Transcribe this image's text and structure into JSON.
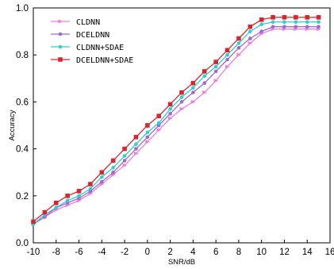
{
  "chart_data": {
    "type": "line",
    "title": "",
    "xlabel": "SNR/dB",
    "ylabel": "Accuracy",
    "xlim": [
      -10,
      16
    ],
    "ylim": [
      0,
      1
    ],
    "x_ticks": [
      -10,
      -8,
      -6,
      -4,
      -2,
      0,
      2,
      4,
      6,
      8,
      10,
      12,
      14,
      16
    ],
    "y_ticks": [
      0.0,
      0.2,
      0.4,
      0.6,
      0.8,
      1.0
    ],
    "x_tick_labels": [
      "-10",
      "-8",
      "-6",
      "-4",
      "-2",
      "0",
      "2",
      "4",
      "6",
      "8",
      "10",
      "12",
      "14",
      "16"
    ],
    "y_tick_labels": [
      "0.0",
      "0.2",
      "0.4",
      "0.6",
      "0.8",
      "1.0"
    ],
    "grid": false,
    "legend_position": "top-left",
    "x": [
      -10,
      -9,
      -8,
      -7,
      -6,
      -5,
      -4,
      -3,
      -2,
      -1,
      0,
      1,
      2,
      3,
      4,
      5,
      6,
      7,
      8,
      9,
      10,
      11,
      12,
      13,
      14,
      15
    ],
    "series": [
      {
        "name": "CLDNN",
        "color": "#f07ce0",
        "marker": "triangle-right",
        "values": [
          0.08,
          0.11,
          0.14,
          0.16,
          0.18,
          0.21,
          0.25,
          0.29,
          0.33,
          0.38,
          0.43,
          0.48,
          0.53,
          0.57,
          0.6,
          0.64,
          0.69,
          0.75,
          0.8,
          0.85,
          0.89,
          0.91,
          0.91,
          0.91,
          0.91,
          0.91
        ]
      },
      {
        "name": "DCELDNN",
        "color": "#9d6bd0",
        "marker": "circle",
        "values": [
          0.08,
          0.11,
          0.15,
          0.17,
          0.19,
          0.22,
          0.26,
          0.3,
          0.35,
          0.4,
          0.45,
          0.5,
          0.55,
          0.6,
          0.64,
          0.68,
          0.73,
          0.78,
          0.83,
          0.87,
          0.9,
          0.92,
          0.92,
          0.92,
          0.92,
          0.92
        ]
      },
      {
        "name": "CLDNN+SDAE",
        "color": "#2dcfd0",
        "marker": "circle",
        "values": [
          0.08,
          0.12,
          0.15,
          0.18,
          0.2,
          0.23,
          0.28,
          0.32,
          0.37,
          0.42,
          0.47,
          0.51,
          0.57,
          0.62,
          0.66,
          0.71,
          0.75,
          0.8,
          0.85,
          0.9,
          0.93,
          0.94,
          0.94,
          0.94,
          0.94,
          0.94
        ]
      },
      {
        "name": "DCELDNN+SDAE",
        "color": "#d8262e",
        "marker": "square",
        "values": [
          0.09,
          0.13,
          0.17,
          0.2,
          0.22,
          0.25,
          0.3,
          0.35,
          0.4,
          0.45,
          0.5,
          0.54,
          0.59,
          0.64,
          0.68,
          0.73,
          0.77,
          0.82,
          0.87,
          0.92,
          0.95,
          0.96,
          0.96,
          0.96,
          0.96,
          0.96
        ]
      }
    ]
  }
}
